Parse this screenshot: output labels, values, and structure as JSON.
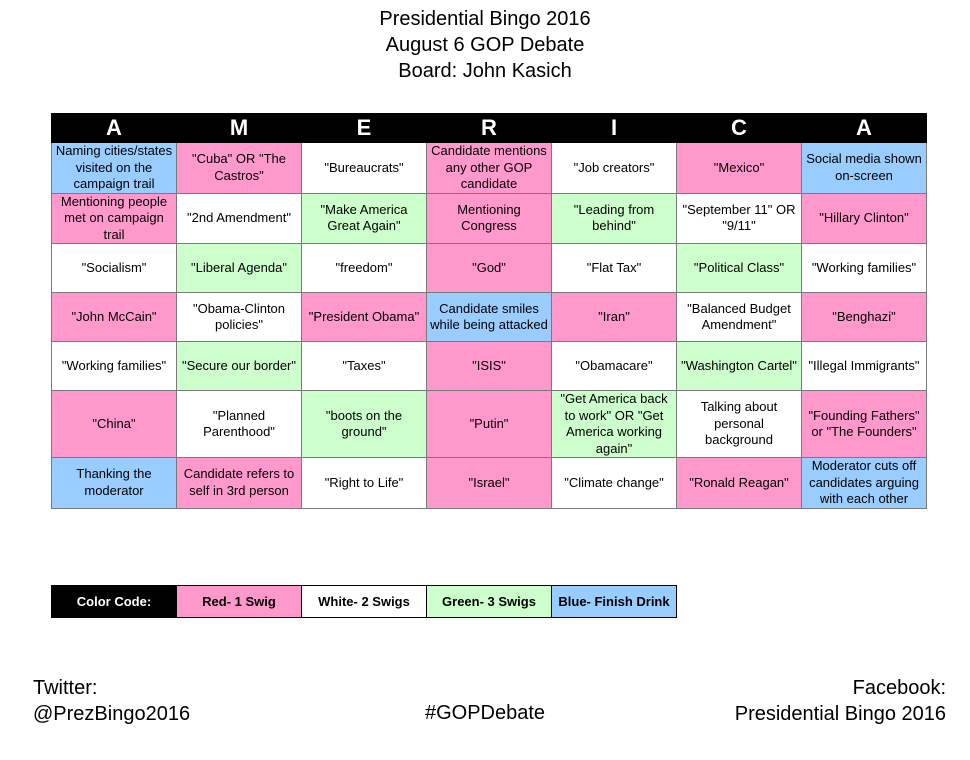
{
  "header": {
    "line1": "Presidential Bingo 2016",
    "line2": "August 6 GOP Debate",
    "line3": "Board: John Kasich"
  },
  "board": {
    "columns": [
      "A",
      "M",
      "E",
      "R",
      "I",
      "C",
      "A"
    ],
    "rows": [
      [
        {
          "text": "Naming cities/states visited on the campaign trail",
          "color": "blue"
        },
        {
          "text": "\"Cuba\" OR \"The Castros\"",
          "color": "red"
        },
        {
          "text": "\"Bureaucrats\"",
          "color": "white"
        },
        {
          "text": "Candidate mentions any other GOP candidate",
          "color": "red"
        },
        {
          "text": "\"Job creators\"",
          "color": "white"
        },
        {
          "text": "\"Mexico\"",
          "color": "red"
        },
        {
          "text": "Social media shown on-screen",
          "color": "blue"
        }
      ],
      [
        {
          "text": "Mentioning people met on campaign trail",
          "color": "red"
        },
        {
          "text": "\"2nd Amendment\"",
          "color": "white"
        },
        {
          "text": "\"Make America Great Again\"",
          "color": "green"
        },
        {
          "text": "Mentioning Congress",
          "color": "red"
        },
        {
          "text": "\"Leading from behind\"",
          "color": "green"
        },
        {
          "text": "\"September 11\" OR \"9/11\"",
          "color": "white"
        },
        {
          "text": "\"Hillary Clinton\"",
          "color": "red"
        }
      ],
      [
        {
          "text": "\"Socialism\"",
          "color": "white"
        },
        {
          "text": "\"Liberal Agenda\"",
          "color": "green"
        },
        {
          "text": "\"freedom\"",
          "color": "white"
        },
        {
          "text": "\"God\"",
          "color": "red"
        },
        {
          "text": "\"Flat Tax\"",
          "color": "white"
        },
        {
          "text": "\"Political Class\"",
          "color": "green"
        },
        {
          "text": "\"Working families\"",
          "color": "white"
        }
      ],
      [
        {
          "text": "\"John McCain\"",
          "color": "red"
        },
        {
          "text": "\"Obama-Clinton policies\"",
          "color": "white"
        },
        {
          "text": "\"President Obama\"",
          "color": "red"
        },
        {
          "text": "Candidate smiles while being attacked",
          "color": "blue"
        },
        {
          "text": "\"Iran\"",
          "color": "red"
        },
        {
          "text": "\"Balanced Budget Amendment\"",
          "color": "white"
        },
        {
          "text": "\"Benghazi\"",
          "color": "red"
        }
      ],
      [
        {
          "text": "\"Working families\"",
          "color": "white"
        },
        {
          "text": "\"Secure our border\"",
          "color": "green"
        },
        {
          "text": "\"Taxes\"",
          "color": "white"
        },
        {
          "text": "\"ISIS\"",
          "color": "red"
        },
        {
          "text": "\"Obamacare\"",
          "color": "white"
        },
        {
          "text": "\"Washington Cartel\"",
          "color": "green"
        },
        {
          "text": "\"Illegal Immigrants\"",
          "color": "white"
        }
      ],
      [
        {
          "text": "\"China\"",
          "color": "red"
        },
        {
          "text": "\"Planned Parenthood\"",
          "color": "white"
        },
        {
          "text": "\"boots on the ground\"",
          "color": "green"
        },
        {
          "text": "\"Putin\"",
          "color": "red"
        },
        {
          "text": "\"Get America back to work\" OR \"Get America working again\"",
          "color": "green"
        },
        {
          "text": "Talking about personal background",
          "color": "white"
        },
        {
          "text": "\"Founding Fathers\" or \"The Founders\"",
          "color": "red"
        }
      ],
      [
        {
          "text": "Thanking the moderator",
          "color": "blue"
        },
        {
          "text": "Candidate refers to self in 3rd person",
          "color": "red"
        },
        {
          "text": "\"Right to Life\"",
          "color": "white"
        },
        {
          "text": "\"Israel\"",
          "color": "red"
        },
        {
          "text": "\"Climate change\"",
          "color": "white"
        },
        {
          "text": "\"Ronald Reagan\"",
          "color": "red"
        },
        {
          "text": "Moderator cuts off candidates arguing with each other",
          "color": "blue"
        }
      ]
    ]
  },
  "legend": {
    "title": "Color Code:",
    "red": "Red- 1 Swig",
    "white": "White- 2 Swigs",
    "green": "Green- 3 Swigs",
    "blue": "Blue- Finish Drink"
  },
  "colors": {
    "red": "#ff99cc",
    "white": "#ffffff",
    "green": "#ccffcc",
    "blue": "#99ccff",
    "header": "#000000"
  },
  "footer": {
    "twitter_label": "Twitter:",
    "twitter_handle": "@PrezBingo2016",
    "hashtag": "#GOPDebate",
    "facebook_label": "Facebook:",
    "facebook_page": "Presidential Bingo 2016"
  }
}
